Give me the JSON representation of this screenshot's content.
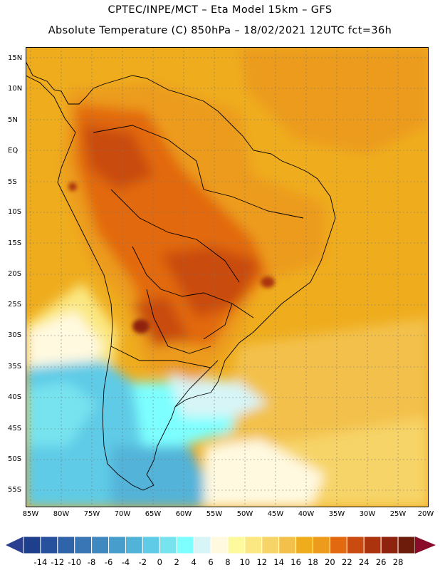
{
  "header": {
    "title_line1": "CPTEC/INPE/MCT –  Eta Model 15km – GFS",
    "title_line2": "Absolute Temperature (C) 850hPa – 18/02/2021 12UTC fct=36h"
  },
  "map": {
    "variable": "Absolute Temperature (C) 850hPa",
    "lat_labels": [
      "15N",
      "10N",
      "5N",
      "EQ",
      "5S",
      "10S",
      "15S",
      "20S",
      "25S",
      "30S",
      "35S",
      "40S",
      "45S",
      "50S",
      "55S"
    ],
    "lon_labels": [
      "85W",
      "80W",
      "75W",
      "70W",
      "65W",
      "60W",
      "55W",
      "50W",
      "45W",
      "40W",
      "35W",
      "30W",
      "25W",
      "20W"
    ]
  },
  "colorbar": {
    "labels": [
      "-14",
      "-12",
      "-10",
      "-8",
      "-6",
      "-4",
      "-2",
      "0",
      "2",
      "4",
      "6",
      "8",
      "10",
      "12",
      "14",
      "16",
      "18",
      "20",
      "22",
      "24",
      "26",
      "28"
    ],
    "colors": [
      "#1d3f8c",
      "#27519c",
      "#2f63aa",
      "#3876b6",
      "#3f89c0",
      "#479dcc",
      "#52b3d9",
      "#5fcbe6",
      "#77e3ef",
      "#7dffff",
      "#d7f5f7",
      "#fff9e0",
      "#fdfa9e",
      "#fbe882",
      "#f7d468",
      "#f3c14b",
      "#efad1e",
      "#ec9b1c",
      "#e2690f",
      "#c94b10",
      "#ab340e",
      "#8f240e",
      "#6d1b0b"
    ],
    "low_color": "#2a3f8f",
    "high_color": "#8a0a2a"
  }
}
